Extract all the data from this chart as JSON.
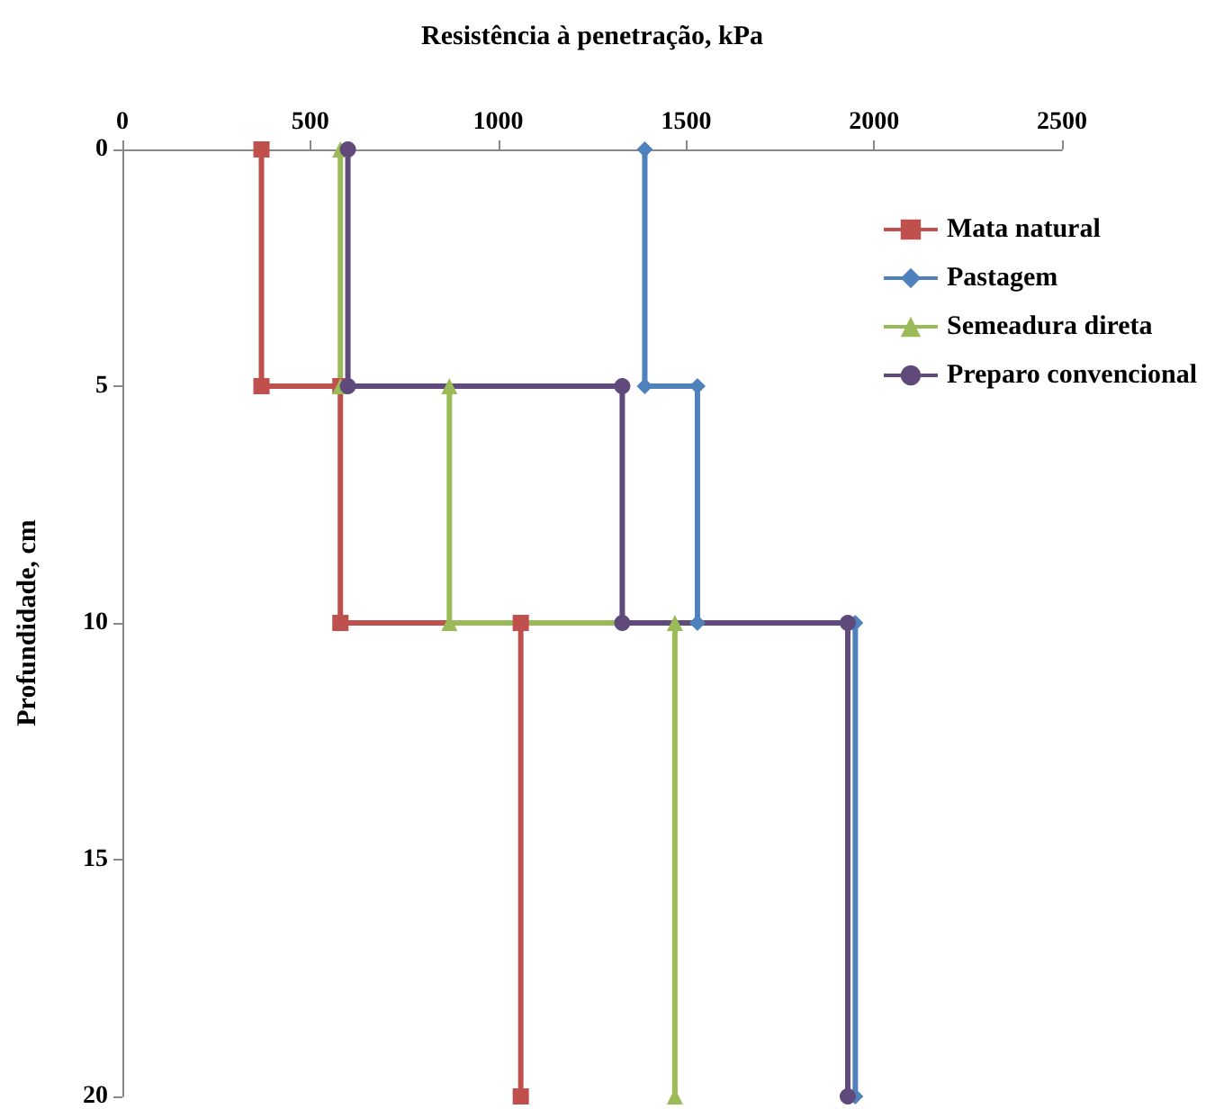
{
  "chart_data": {
    "type": "line",
    "xlabel": "Resistência à penetração, kPa",
    "ylabel": "Profundidade, cm",
    "xlim": [
      0,
      2500
    ],
    "xticks": [
      0,
      500,
      1000,
      1500,
      2000,
      2500
    ],
    "ylim": [
      20,
      0
    ],
    "yticks": [
      0,
      5,
      10,
      15,
      20
    ],
    "grid": false,
    "legend": "top right",
    "series": [
      {
        "name": "Mata natural",
        "color": "#c0504d",
        "marker": "square",
        "x": [
          370,
          370,
          580,
          580,
          1060,
          1060
        ],
        "values": [
          0,
          5,
          5,
          10,
          10,
          20
        ]
      },
      {
        "name": "Pastagem",
        "color": "#4f81bd",
        "marker": "diamond",
        "x": [
          1390,
          1390,
          1530,
          1530,
          1950,
          1950
        ],
        "values": [
          0,
          5,
          5,
          10,
          10,
          20
        ]
      },
      {
        "name": "Semeadura direta",
        "color": "#9bbb59",
        "marker": "triangle",
        "x": [
          580,
          580,
          870,
          870,
          1470,
          1470
        ],
        "values": [
          0,
          5,
          5,
          10,
          10,
          20
        ]
      },
      {
        "name": "Preparo convencional",
        "color": "#604a7b",
        "marker": "circle",
        "x": [
          600,
          600,
          1330,
          1330,
          1930,
          1930
        ],
        "values": [
          0,
          5,
          5,
          10,
          10,
          20
        ]
      }
    ]
  }
}
